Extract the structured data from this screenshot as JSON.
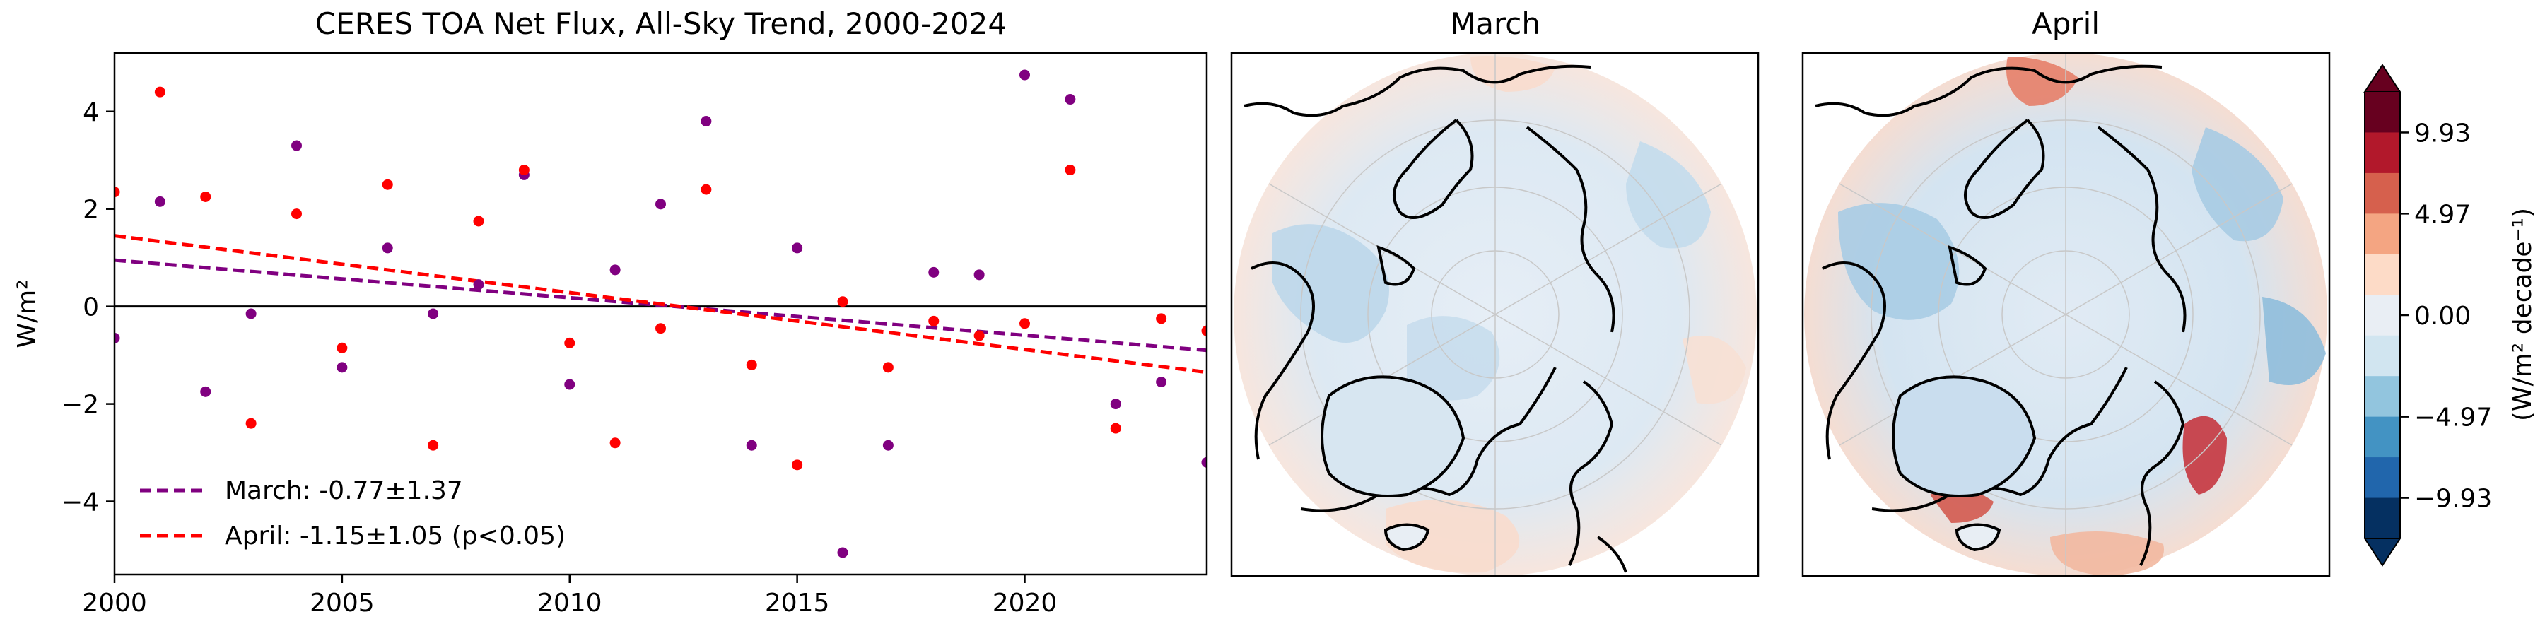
{
  "chart_data": [
    {
      "type": "scatter",
      "title": "CERES TOA Net Flux, All-Sky Trend, 2000-2024",
      "xlabel": "",
      "ylabel": "W/m²",
      "xlim": [
        2000,
        2024
      ],
      "ylim": [
        -5.5,
        5.2
      ],
      "xticks": [
        2000,
        2005,
        2010,
        2015,
        2020
      ],
      "yticks": [
        -4,
        -2,
        0,
        2,
        4
      ],
      "grid": false,
      "legend_position": "lower-left",
      "series": [
        {
          "name": "March",
          "color": "#800080",
          "x": [
            2000,
            2001,
            2002,
            2003,
            2004,
            2005,
            2006,
            2007,
            2008,
            2009,
            2010,
            2011,
            2012,
            2013,
            2014,
            2015,
            2016,
            2017,
            2018,
            2019,
            2020,
            2021,
            2022,
            2023,
            2024
          ],
          "y": [
            -0.65,
            2.15,
            -1.75,
            -0.15,
            3.3,
            -1.25,
            1.2,
            -0.15,
            0.45,
            2.7,
            -1.6,
            0.75,
            2.1,
            3.8,
            -2.85,
            1.2,
            -5.05,
            -2.85,
            0.7,
            0.65,
            4.75,
            4.25,
            -2.0,
            -1.55,
            -3.2
          ],
          "trend": {
            "label": "March: -0.77±1.37",
            "start": 0.95,
            "end": -0.9
          }
        },
        {
          "name": "April",
          "color": "#ff0000",
          "x": [
            2000,
            2001,
            2002,
            2003,
            2004,
            2005,
            2006,
            2007,
            2008,
            2009,
            2010,
            2011,
            2012,
            2013,
            2014,
            2015,
            2016,
            2017,
            2018,
            2019,
            2020,
            2021,
            2022,
            2023,
            2024
          ],
          "y": [
            2.35,
            4.4,
            2.25,
            -2.4,
            1.9,
            -0.85,
            2.5,
            -2.85,
            1.75,
            2.8,
            -0.75,
            -2.8,
            -0.45,
            2.4,
            -1.2,
            -3.25,
            0.1,
            -1.25,
            -0.3,
            -0.6,
            -0.35,
            2.8,
            -2.5,
            -0.25,
            -0.5
          ],
          "trend": {
            "label": "April: -1.15±1.05 (p<0.05)",
            "start": 1.45,
            "end": -1.35
          }
        }
      ],
      "zero_line": 0
    },
    {
      "type": "heatmap",
      "projection": "north-polar-stereographic",
      "title": "March",
      "description_colors": "mostly light blue over Arctic land/ocean, faint orange over lower latitudes"
    },
    {
      "type": "heatmap",
      "projection": "north-polar-stereographic",
      "title": "April",
      "description_colors": "stronger contrasts: blue over Canada/Eurasia interior, red spots near Scandinavia and Greenland sea"
    }
  ],
  "colorbar": {
    "label": "(W/m² decade⁻¹)",
    "ticks": [
      "9.93",
      "4.97",
      "0.00",
      "−4.97",
      "−9.93"
    ],
    "colors": [
      "#67001f",
      "#b2182b",
      "#d6604d",
      "#f4a582",
      "#fddbc7",
      "#e9eef4",
      "#d1e5f0",
      "#92c5de",
      "#4393c3",
      "#2166ac",
      "#053061"
    ],
    "extend_max_color": "#67001f",
    "extend_min_color": "#053061"
  }
}
